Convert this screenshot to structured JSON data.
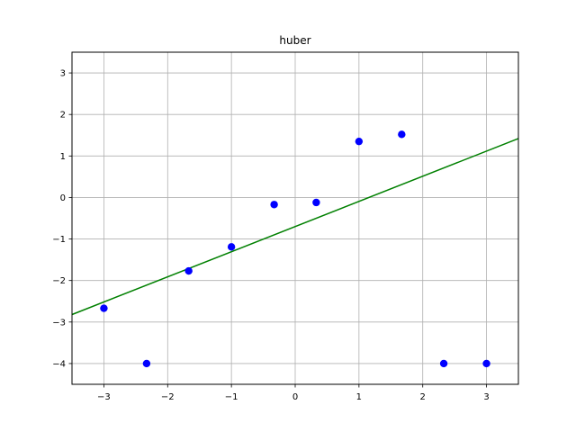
{
  "chart_data": {
    "type": "scatter",
    "title": "huber",
    "xlabel": "",
    "ylabel": "",
    "xlim": [
      -3.5,
      3.5
    ],
    "ylim": [
      -4.5,
      3.5
    ],
    "x_ticks": [
      -3,
      -2,
      -1,
      0,
      1,
      2,
      3
    ],
    "y_ticks": [
      -4,
      -3,
      -2,
      -1,
      0,
      1,
      2,
      3
    ],
    "x_tick_labels": [
      "−3",
      "−2",
      "−1",
      "0",
      "1",
      "2",
      "3"
    ],
    "y_tick_labels": [
      "−4",
      "−3",
      "−2",
      "−1",
      "0",
      "1",
      "2",
      "3"
    ],
    "grid": true,
    "series": [
      {
        "type": "scatter",
        "color": "#0000ff",
        "points": [
          {
            "x": -3.0,
            "y": -2.67
          },
          {
            "x": -2.33,
            "y": -4.0
          },
          {
            "x": -1.67,
            "y": -1.77
          },
          {
            "x": -1.0,
            "y": -1.19
          },
          {
            "x": -0.33,
            "y": -0.17
          },
          {
            "x": 0.33,
            "y": -0.12
          },
          {
            "x": 1.0,
            "y": 1.35
          },
          {
            "x": 1.67,
            "y": 1.52
          },
          {
            "x": 2.33,
            "y": -4.0
          },
          {
            "x": 3.0,
            "y": -4.0
          }
        ]
      },
      {
        "type": "line",
        "color": "#008000",
        "points": [
          {
            "x": -3.5,
            "y": -2.82
          },
          {
            "x": 3.5,
            "y": 1.42
          }
        ]
      }
    ]
  }
}
